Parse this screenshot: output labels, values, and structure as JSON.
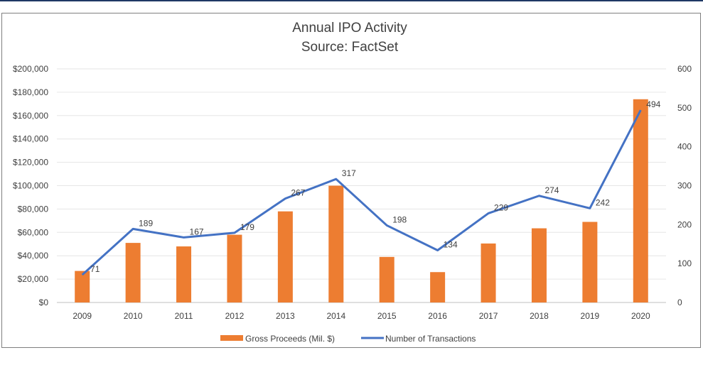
{
  "chart_data": {
    "type": "bar",
    "title": "Annual IPO Activity",
    "subtitle": "Source: FactSet",
    "categories": [
      "2009",
      "2010",
      "2011",
      "2012",
      "2013",
      "2014",
      "2015",
      "2016",
      "2017",
      "2018",
      "2019",
      "2020"
    ],
    "series": [
      {
        "name": "Gross Proceeds (Mil. $)",
        "type": "bar",
        "axis": "left",
        "color": "#ed7d31",
        "values": [
          27000,
          51000,
          48000,
          58000,
          78000,
          100000,
          39000,
          26000,
          50500,
          63500,
          69000,
          174000
        ]
      },
      {
        "name": "Number of Transactions",
        "type": "line",
        "axis": "right",
        "color": "#4472c4",
        "values": [
          71,
          189,
          167,
          179,
          267,
          317,
          198,
          134,
          229,
          274,
          242,
          494
        ],
        "labels": [
          "71",
          "189",
          "167",
          "179",
          "267",
          "317",
          "198",
          "134",
          "229",
          "274",
          "242",
          "494"
        ]
      }
    ],
    "y_left": {
      "min": 0,
      "max": 200000,
      "step": 20000,
      "tick_labels": [
        "$0",
        "$20,000",
        "$40,000",
        "$60,000",
        "$80,000",
        "$100,000",
        "$120,000",
        "$140,000",
        "$160,000",
        "$180,000",
        "$200,000"
      ]
    },
    "y_right": {
      "min": 0,
      "max": 600,
      "step": 100,
      "tick_labels": [
        "0",
        "100",
        "200",
        "300",
        "400",
        "500",
        "600"
      ]
    },
    "grid": true,
    "legend_position": "bottom"
  }
}
